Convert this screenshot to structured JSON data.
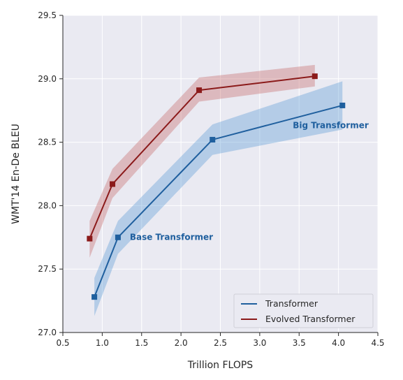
{
  "chart_data": {
    "type": "line",
    "title": "",
    "xlabel": "Trillion FLOPS",
    "ylabel": "WMT'14 En-De BLEU",
    "xlim": [
      0.5,
      4.5
    ],
    "ylim": [
      27.0,
      29.5
    ],
    "xticks": [
      0.5,
      1.0,
      1.5,
      2.0,
      2.5,
      3.0,
      3.5,
      4.0,
      4.5
    ],
    "xtick_labels": [
      "0.5",
      "1.0",
      "1.5",
      "2.0",
      "2.5",
      "3.0",
      "3.5",
      "4.0",
      "4.5"
    ],
    "yticks": [
      27.0,
      27.5,
      28.0,
      28.5,
      29.0,
      29.5
    ],
    "ytick_labels": [
      "27.0",
      "27.5",
      "28.0",
      "28.5",
      "29.0",
      "29.5"
    ],
    "grid": true,
    "legend_position": "lower-right",
    "series": [
      {
        "name": "Transformer",
        "color": "#1f5f9e",
        "band_color": "#5b9bd5",
        "x": [
          0.9,
          1.2,
          2.4,
          4.05
        ],
        "y": [
          27.28,
          27.75,
          28.52,
          28.79
        ],
        "lower": [
          27.13,
          27.62,
          28.4,
          28.6
        ],
        "upper": [
          27.43,
          27.88,
          28.64,
          28.98
        ]
      },
      {
        "name": "Evolved Transformer",
        "color": "#8b1a1a",
        "band_color": "#c46a6a",
        "x": [
          0.84,
          1.13,
          2.23,
          3.7
        ],
        "y": [
          27.74,
          28.17,
          28.91,
          29.02
        ],
        "lower": [
          27.59,
          28.06,
          28.82,
          28.94
        ],
        "upper": [
          27.88,
          28.29,
          29.01,
          29.11
        ]
      }
    ],
    "annotations": [
      {
        "text": "Big Transformer",
        "x": 3.42,
        "y": 28.61,
        "color": "#1f5f9e"
      },
      {
        "text": "Base Transformer",
        "x": 1.35,
        "y": 27.73,
        "color": "#1f5f9e"
      }
    ]
  }
}
